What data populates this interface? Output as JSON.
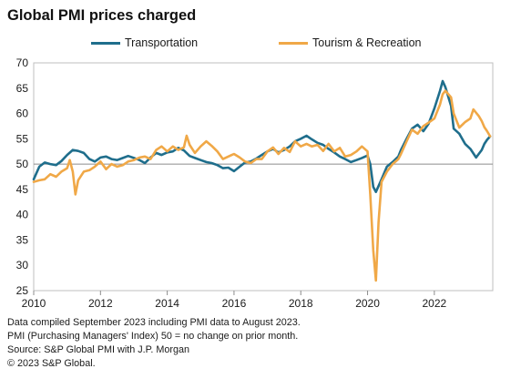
{
  "title": "Global PMI prices charged",
  "notes": [
    "Data compiled September 2023 including PMI data to August 2023.",
    "PMI (Purchasing Managers' Index) 50 = no change on prior month.",
    "Source: S&P Global PMI with J.P. Morgan",
    "© 2023 S&P Global."
  ],
  "chart_data": {
    "type": "line",
    "title": "Global PMI prices charged",
    "xlabel": "",
    "ylabel": "",
    "xlim": [
      2010.0,
      2023.75
    ],
    "ylim": [
      25,
      70
    ],
    "x_ticks": [
      2010,
      2012,
      2014,
      2016,
      2018,
      2020,
      2022
    ],
    "y_ticks": [
      25,
      30,
      35,
      40,
      45,
      50,
      55,
      60,
      65,
      70
    ],
    "reference_line": 50,
    "grid": false,
    "legend_position": "top",
    "series": [
      {
        "name": "Transportation",
        "color": "#1f6e8c",
        "points": [
          [
            2010.0,
            47.0
          ],
          [
            2010.17,
            49.5
          ],
          [
            2010.33,
            50.3
          ],
          [
            2010.5,
            50.0
          ],
          [
            2010.67,
            49.8
          ],
          [
            2010.83,
            50.6
          ],
          [
            2011.0,
            51.8
          ],
          [
            2011.17,
            52.8
          ],
          [
            2011.33,
            52.6
          ],
          [
            2011.5,
            52.2
          ],
          [
            2011.67,
            51.0
          ],
          [
            2011.83,
            50.5
          ],
          [
            2012.0,
            51.3
          ],
          [
            2012.17,
            51.5
          ],
          [
            2012.33,
            51.0
          ],
          [
            2012.5,
            50.8
          ],
          [
            2012.67,
            51.2
          ],
          [
            2012.83,
            51.6
          ],
          [
            2013.0,
            51.2
          ],
          [
            2013.17,
            50.8
          ],
          [
            2013.33,
            50.2
          ],
          [
            2013.5,
            51.3
          ],
          [
            2013.67,
            52.2
          ],
          [
            2013.83,
            51.8
          ],
          [
            2014.0,
            52.3
          ],
          [
            2014.17,
            52.5
          ],
          [
            2014.33,
            53.2
          ],
          [
            2014.5,
            52.7
          ],
          [
            2014.67,
            51.6
          ],
          [
            2014.83,
            51.2
          ],
          [
            2015.0,
            50.8
          ],
          [
            2015.17,
            50.4
          ],
          [
            2015.33,
            50.2
          ],
          [
            2015.5,
            49.8
          ],
          [
            2015.67,
            49.2
          ],
          [
            2015.83,
            49.3
          ],
          [
            2016.0,
            48.6
          ],
          [
            2016.17,
            49.5
          ],
          [
            2016.33,
            50.3
          ],
          [
            2016.5,
            50.5
          ],
          [
            2016.67,
            51.1
          ],
          [
            2016.83,
            51.8
          ],
          [
            2017.0,
            52.5
          ],
          [
            2017.17,
            53.0
          ],
          [
            2017.33,
            52.3
          ],
          [
            2017.5,
            52.8
          ],
          [
            2017.67,
            53.5
          ],
          [
            2017.83,
            54.5
          ],
          [
            2018.0,
            55.0
          ],
          [
            2018.17,
            55.6
          ],
          [
            2018.33,
            54.9
          ],
          [
            2018.5,
            54.2
          ],
          [
            2018.67,
            53.8
          ],
          [
            2018.83,
            53.0
          ],
          [
            2019.0,
            52.3
          ],
          [
            2019.17,
            51.5
          ],
          [
            2019.33,
            51.0
          ],
          [
            2019.5,
            50.4
          ],
          [
            2019.67,
            50.8
          ],
          [
            2019.83,
            51.2
          ],
          [
            2020.0,
            51.7
          ],
          [
            2020.08,
            50.0
          ],
          [
            2020.17,
            45.5
          ],
          [
            2020.25,
            44.5
          ],
          [
            2020.42,
            47.0
          ],
          [
            2020.58,
            49.5
          ],
          [
            2020.75,
            50.4
          ],
          [
            2020.92,
            51.5
          ],
          [
            2021.0,
            52.8
          ],
          [
            2021.17,
            55.0
          ],
          [
            2021.33,
            57.0
          ],
          [
            2021.5,
            57.8
          ],
          [
            2021.67,
            56.5
          ],
          [
            2021.83,
            58.0
          ],
          [
            2022.0,
            61.0
          ],
          [
            2022.17,
            64.5
          ],
          [
            2022.25,
            66.4
          ],
          [
            2022.33,
            65.2
          ],
          [
            2022.5,
            61.5
          ],
          [
            2022.58,
            57.0
          ],
          [
            2022.75,
            56.0
          ],
          [
            2022.92,
            54.0
          ],
          [
            2023.08,
            53.0
          ],
          [
            2023.25,
            51.3
          ],
          [
            2023.42,
            52.8
          ],
          [
            2023.5,
            54.0
          ],
          [
            2023.58,
            54.8
          ],
          [
            2023.67,
            55.5
          ]
        ]
      },
      {
        "name": "Tourism & Recreation",
        "color": "#f0a847",
        "points": [
          [
            2010.0,
            46.5
          ],
          [
            2010.17,
            46.8
          ],
          [
            2010.33,
            47.0
          ],
          [
            2010.5,
            48.0
          ],
          [
            2010.67,
            47.5
          ],
          [
            2010.83,
            48.5
          ],
          [
            2011.0,
            49.2
          ],
          [
            2011.08,
            50.8
          ],
          [
            2011.17,
            48.5
          ],
          [
            2011.25,
            44.0
          ],
          [
            2011.33,
            46.8
          ],
          [
            2011.5,
            48.5
          ],
          [
            2011.67,
            48.8
          ],
          [
            2011.83,
            49.5
          ],
          [
            2012.0,
            50.5
          ],
          [
            2012.17,
            49.0
          ],
          [
            2012.33,
            50.0
          ],
          [
            2012.5,
            49.5
          ],
          [
            2012.67,
            49.8
          ],
          [
            2012.83,
            50.5
          ],
          [
            2013.0,
            50.8
          ],
          [
            2013.17,
            51.3
          ],
          [
            2013.33,
            51.5
          ],
          [
            2013.5,
            51.0
          ],
          [
            2013.67,
            52.8
          ],
          [
            2013.83,
            53.5
          ],
          [
            2014.0,
            52.5
          ],
          [
            2014.17,
            53.5
          ],
          [
            2014.33,
            52.8
          ],
          [
            2014.5,
            53.3
          ],
          [
            2014.58,
            55.6
          ],
          [
            2014.67,
            53.8
          ],
          [
            2014.83,
            52.2
          ],
          [
            2015.0,
            53.5
          ],
          [
            2015.17,
            54.5
          ],
          [
            2015.33,
            53.6
          ],
          [
            2015.5,
            52.5
          ],
          [
            2015.67,
            51.0
          ],
          [
            2015.83,
            51.5
          ],
          [
            2016.0,
            52.0
          ],
          [
            2016.17,
            51.3
          ],
          [
            2016.33,
            50.5
          ],
          [
            2016.5,
            50.2
          ],
          [
            2016.67,
            51.0
          ],
          [
            2016.83,
            51.0
          ],
          [
            2017.0,
            52.5
          ],
          [
            2017.17,
            53.3
          ],
          [
            2017.33,
            52.0
          ],
          [
            2017.5,
            53.2
          ],
          [
            2017.67,
            52.4
          ],
          [
            2017.83,
            54.5
          ],
          [
            2018.0,
            53.5
          ],
          [
            2018.17,
            54.0
          ],
          [
            2018.33,
            53.5
          ],
          [
            2018.5,
            53.8
          ],
          [
            2018.67,
            52.6
          ],
          [
            2018.83,
            54.0
          ],
          [
            2019.0,
            52.5
          ],
          [
            2019.17,
            53.2
          ],
          [
            2019.33,
            51.5
          ],
          [
            2019.5,
            51.8
          ],
          [
            2019.67,
            52.5
          ],
          [
            2019.83,
            53.5
          ],
          [
            2020.0,
            52.5
          ],
          [
            2020.08,
            44.0
          ],
          [
            2020.17,
            33.0
          ],
          [
            2020.25,
            27.0
          ],
          [
            2020.33,
            38.5
          ],
          [
            2020.42,
            46.5
          ],
          [
            2020.58,
            48.5
          ],
          [
            2020.75,
            50.0
          ],
          [
            2020.92,
            51.0
          ],
          [
            2021.0,
            52.0
          ],
          [
            2021.17,
            54.5
          ],
          [
            2021.33,
            56.8
          ],
          [
            2021.5,
            56.0
          ],
          [
            2021.67,
            57.5
          ],
          [
            2021.83,
            58.2
          ],
          [
            2022.0,
            59.0
          ],
          [
            2022.17,
            61.8
          ],
          [
            2022.25,
            63.8
          ],
          [
            2022.33,
            64.5
          ],
          [
            2022.5,
            63.2
          ],
          [
            2022.58,
            60.0
          ],
          [
            2022.75,
            57.2
          ],
          [
            2022.92,
            58.3
          ],
          [
            2023.08,
            59.0
          ],
          [
            2023.17,
            60.8
          ],
          [
            2023.33,
            59.5
          ],
          [
            2023.42,
            58.5
          ],
          [
            2023.5,
            57.3
          ],
          [
            2023.58,
            56.5
          ],
          [
            2023.67,
            55.5
          ]
        ]
      }
    ]
  }
}
